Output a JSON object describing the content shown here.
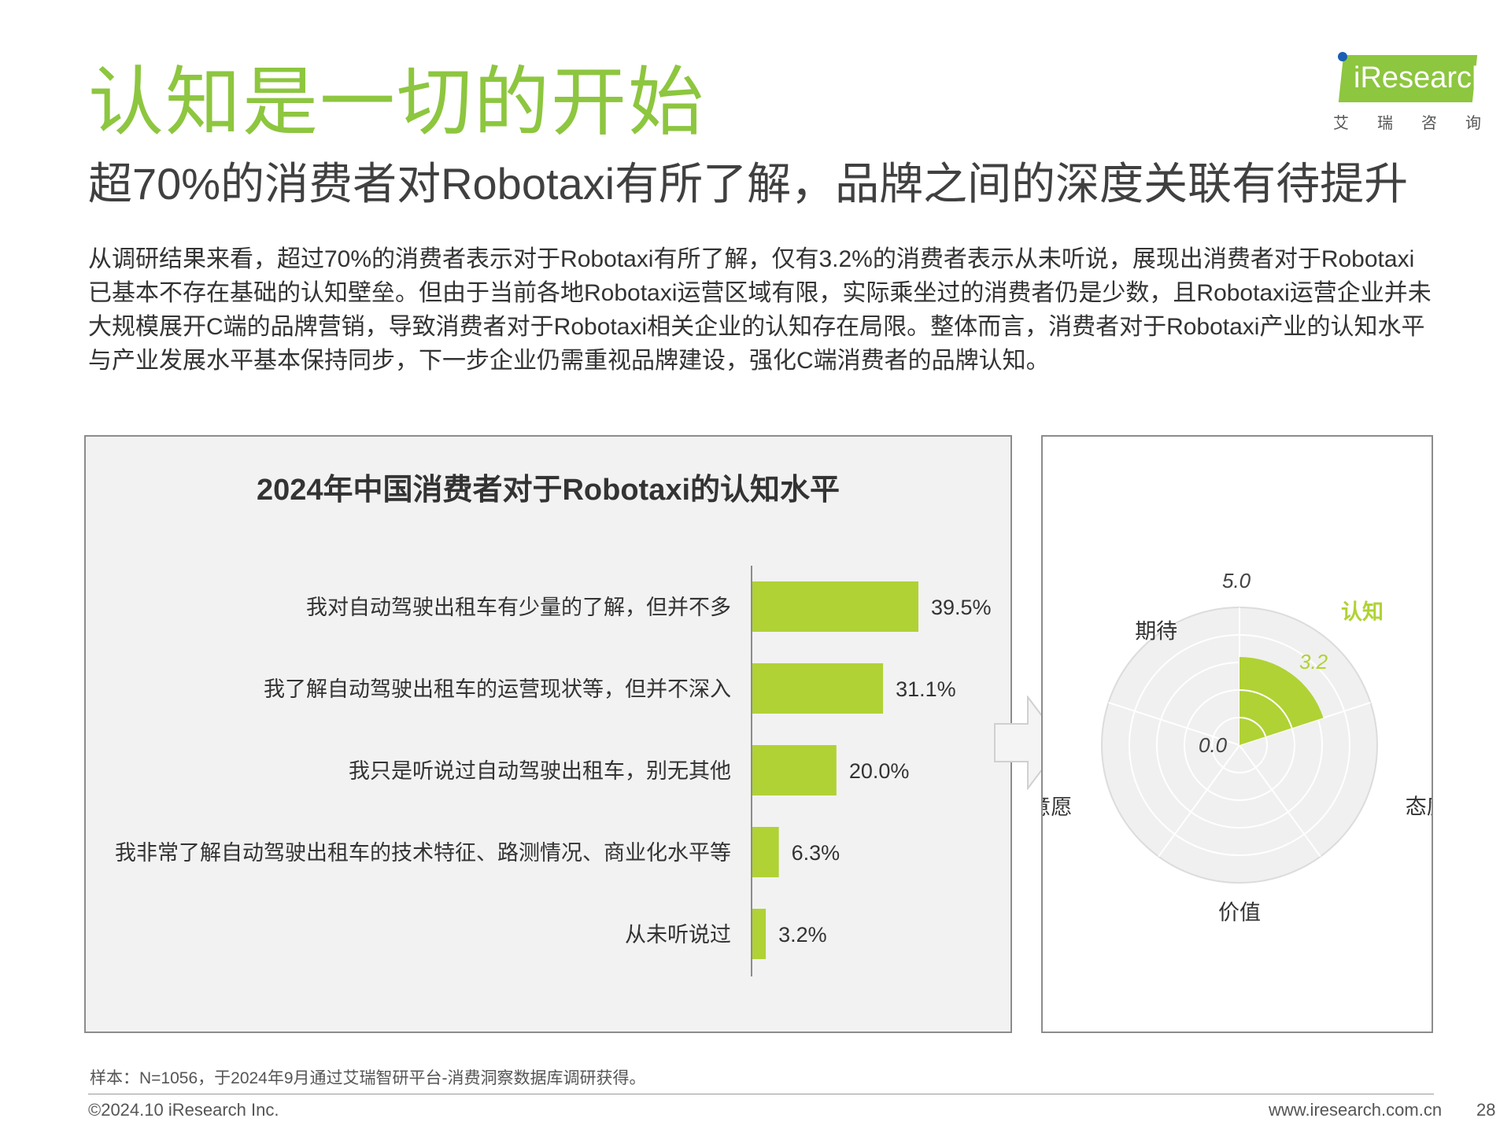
{
  "title": "认知是一切的开始",
  "subtitle": "超70%的消费者对Robotaxi有所了解，品牌之间的深度关联有待提升",
  "body_text": "从调研结果来看，超过70%的消费者表示对于Robotaxi有所了解，仅有3.2%的消费者表示从未听说，展现出消费者对于Robotaxi已基本不存在基础的认知壁垒。但由于当前各地Robotaxi运营区域有限，实际乘坐过的消费者仍是少数，且Robotaxi运营企业并未大规模展开C端的品牌营销，导致消费者对于Robotaxi相关企业的认知存在局限。整体而言，消费者对于Robotaxi产业的认知水平与产业发展水平基本保持同步，下一步企业仍需重视品牌建设，强化C端消费者的品牌认知。",
  "logo": {
    "wordmark": "iResearch",
    "sub": "艾瑞咨询"
  },
  "colors": {
    "accent": "#8dc63f",
    "bar": "#b0d235",
    "panel_bg": "#f2f2f2",
    "radar_bg": "#f0f0f0",
    "radar_grid": "#ffffff"
  },
  "chart_data": [
    {
      "type": "bar",
      "orientation": "horizontal",
      "title": "2024年中国消费者对于Robotaxi的认知水平",
      "categories": [
        "我对自动驾驶出租车有少量的了解，但并不多",
        "我了解自动驾驶出租车的运营现状等，但并不深入",
        "我只是听说过自动驾驶出租车，别无其他",
        "我非常了解自动驾驶出租车的技术特征、路测情况、商业化水平等",
        "从未听说过"
      ],
      "values": [
        39.5,
        31.1,
        20.0,
        6.3,
        3.2
      ],
      "value_labels": [
        "39.5%",
        "31.1%",
        "20.0%",
        "6.3%",
        "3.2%"
      ],
      "unit": "%",
      "xlim": [
        0,
        60
      ]
    },
    {
      "type": "polar-area",
      "axes": [
        "认知",
        "态度",
        "价值",
        "意愿",
        "期待"
      ],
      "highlighted_axis": "认知",
      "values": [
        3.2,
        null,
        null,
        null,
        null
      ],
      "value_label": "3.2",
      "rmin_label": "0.0",
      "rmax_label": "5.0",
      "rlim": [
        0,
        5
      ],
      "rings": 5
    }
  ],
  "footnote": "样本：N=1056，于2024年9月通过艾瑞智研平台-消费洞察数据库调研获得。",
  "footer": {
    "copyright": "©2024.10 iResearch Inc.",
    "website": "www.iresearch.com.cn",
    "page": "28"
  }
}
